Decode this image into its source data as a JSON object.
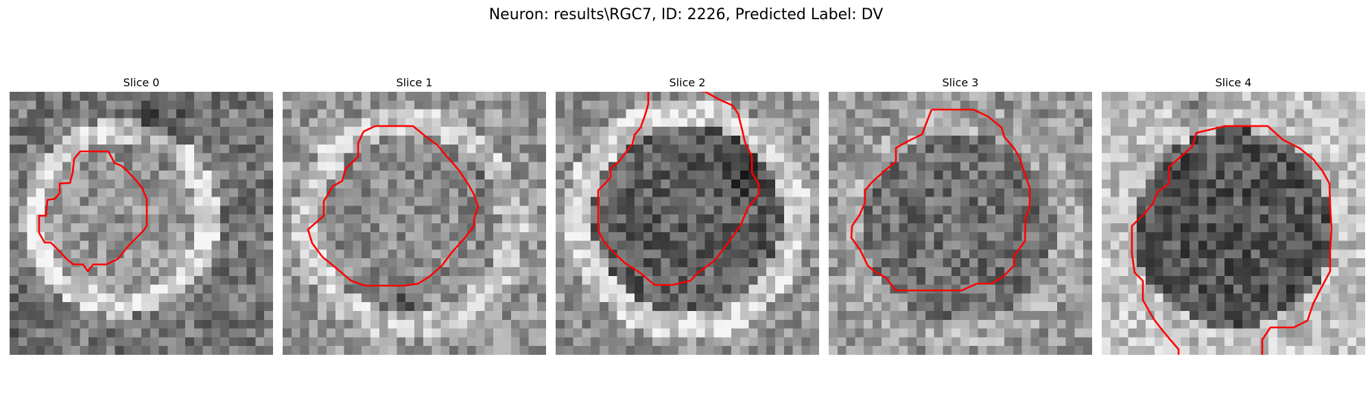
{
  "figure": {
    "title": "Neuron: results\\RGC7, ID: 2226, Predicted Label: DV"
  },
  "colors": {
    "contour": "#ff0000",
    "background": "#ffffff"
  },
  "slices": [
    {
      "label": "Slice 0"
    },
    {
      "label": "Slice 1"
    },
    {
      "label": "Slice 2"
    },
    {
      "label": "Slice 3"
    },
    {
      "label": "Slice 4"
    }
  ]
}
